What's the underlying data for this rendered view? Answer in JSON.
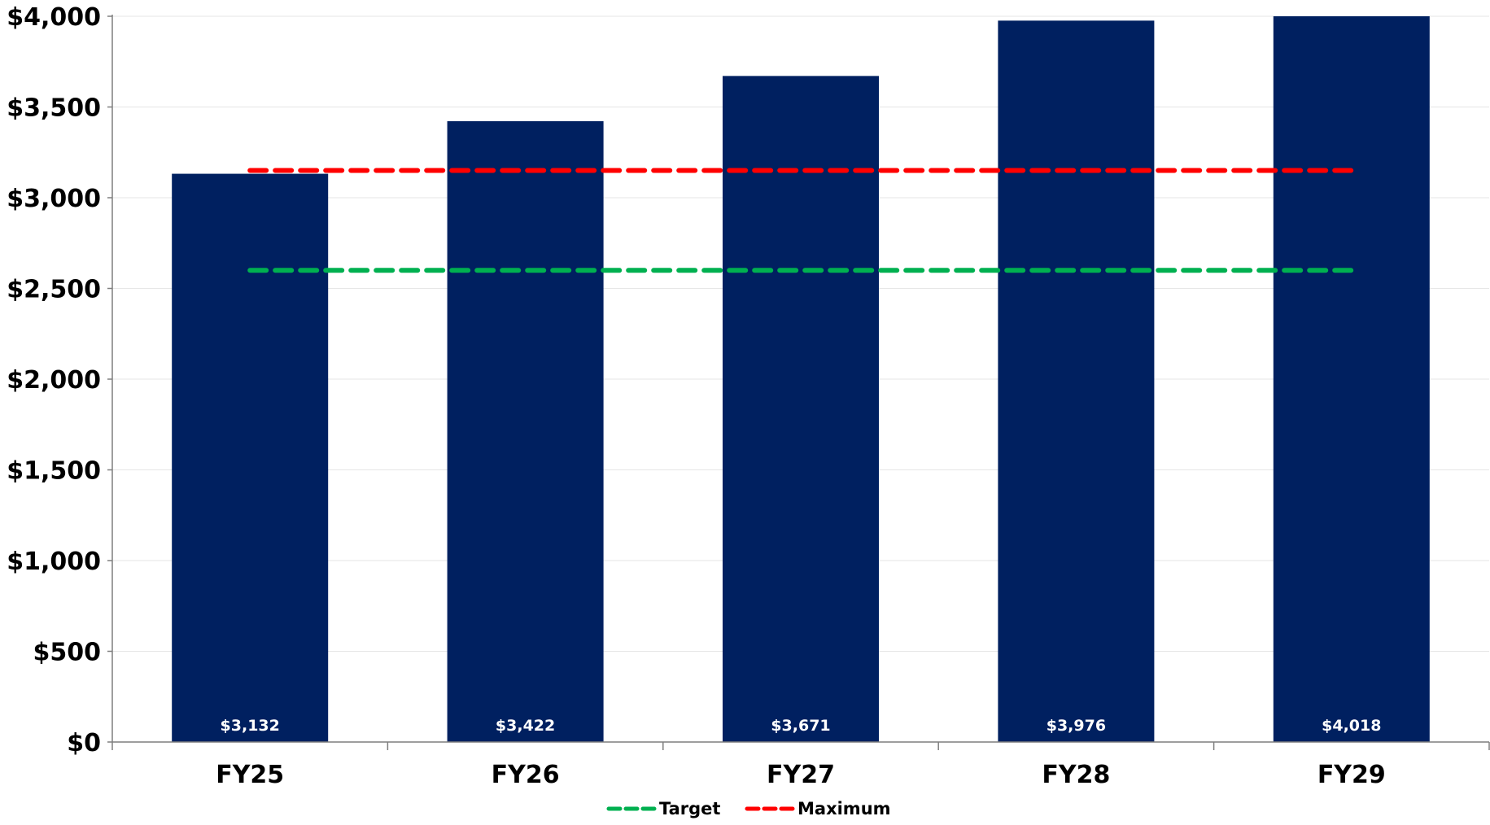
{
  "chart_data": {
    "type": "bar",
    "categories": [
      "FY25",
      "FY26",
      "FY27",
      "FY28",
      "FY29"
    ],
    "series": [
      {
        "values": [
          3132,
          3422,
          3671,
          3976,
          4018
        ],
        "color": "#002060"
      }
    ],
    "data_labels": [
      "$3,132",
      "$3,422",
      "$3,671",
      "$3,976",
      "$4,018"
    ],
    "reference_lines": [
      {
        "name": "Target",
        "value": 2600,
        "color": "#00B050",
        "style": "dashed"
      },
      {
        "name": "Maximum",
        "value": 3150,
        "color": "#FF0000",
        "style": "dashed"
      }
    ],
    "ylim": [
      0,
      4000
    ],
    "y_ticks": [
      0,
      500,
      1000,
      1500,
      2000,
      2500,
      3000,
      3500,
      4000
    ],
    "y_tick_labels": [
      "$0",
      "$500",
      "$1,000",
      "$1,500",
      "$2,000",
      "$2,500",
      "$3,000",
      "$3,500",
      "$4,000"
    ],
    "grid": true,
    "legend_position": "bottom",
    "title": "",
    "xlabel": "",
    "ylabel": ""
  }
}
